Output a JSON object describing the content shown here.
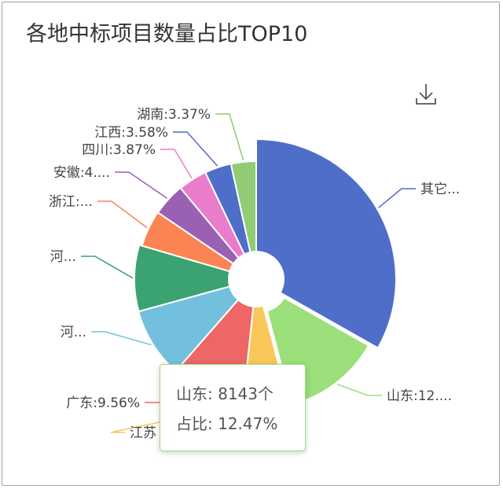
{
  "title": "各地中标项目数量占比TOP10",
  "toolbar": {
    "download_icon": "download-icon"
  },
  "chart_data": {
    "type": "pie",
    "title": "各地中标项目数量占比TOP10",
    "slices": [
      {
        "name": "其它",
        "value": 32.53,
        "label": "其它...",
        "color": "#4e6ec9"
      },
      {
        "name": "山东",
        "value": 12.47,
        "label": "山东:12....",
        "color": "#9be07a"
      },
      {
        "name": "江苏",
        "value": 5.65,
        "label": "江苏",
        "color": "#fac858"
      },
      {
        "name": "广东",
        "value": 9.56,
        "label": "广东:9.56%",
        "color": "#ee6666"
      },
      {
        "name": "河...",
        "value": 9.1,
        "label": "河...",
        "color": "#73c0de"
      },
      {
        "name": "河...",
        "value": 8.62,
        "label": "河...",
        "color": "#3ba272"
      },
      {
        "name": "浙江",
        "value": 4.85,
        "label": "浙江:...",
        "color": "#fc8452"
      },
      {
        "name": "安徽",
        "value": 4.4,
        "label": "安徽:4....",
        "color": "#9a60b4"
      },
      {
        "name": "四川",
        "value": 3.87,
        "label": "四川:3.87%",
        "color": "#ea7ccc"
      },
      {
        "name": "江西",
        "value": 3.58,
        "label": "江西:3.58%",
        "color": "#4e6ec9"
      },
      {
        "name": "湖南",
        "value": 3.37,
        "label": "湖南:3.37%",
        "color": "#91cc75"
      }
    ],
    "highlighted": "山东"
  },
  "tooltip": {
    "line1": "山东: 8143个",
    "line2": "占比: 12.47%"
  }
}
